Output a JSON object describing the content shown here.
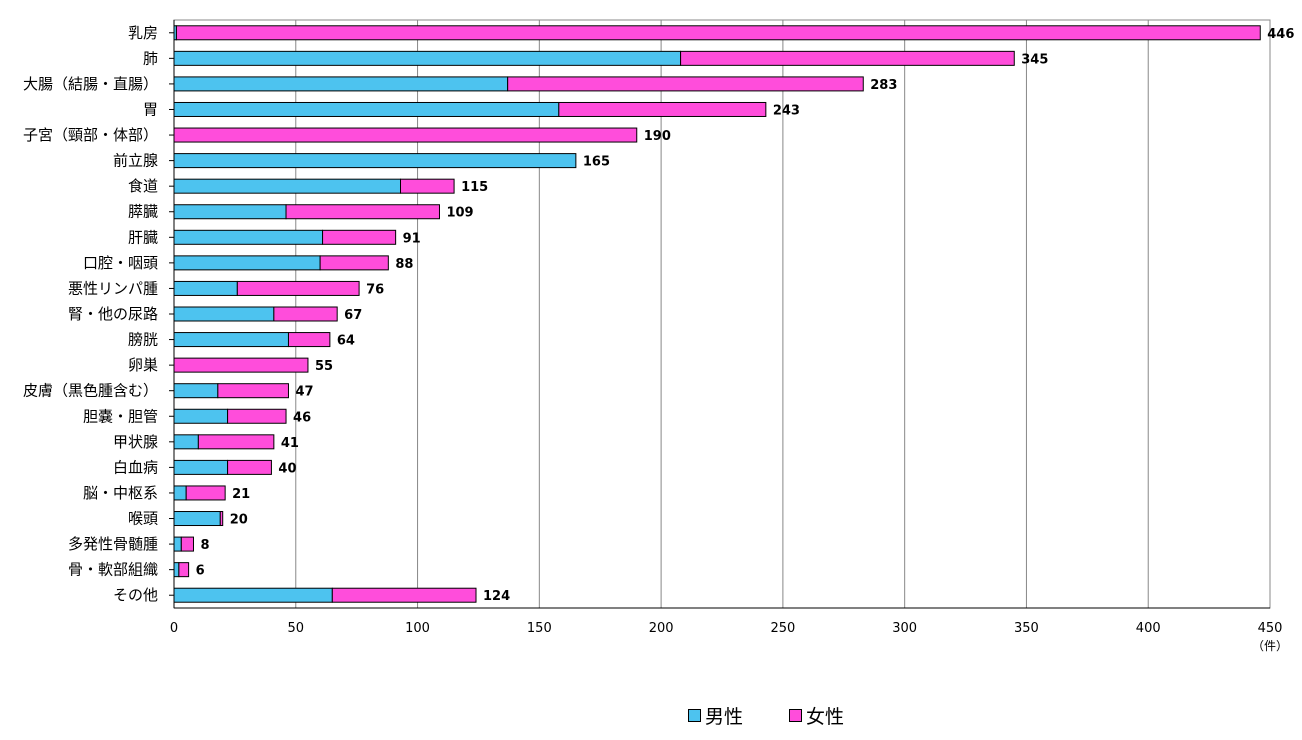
{
  "chart_data": {
    "type": "bar",
    "orientation": "horizontal",
    "stacked": true,
    "categories": [
      "乳房",
      "肺",
      "大腸（結腸・直腸）",
      "胃",
      "子宮（頸部・体部）",
      "前立腺",
      "食道",
      "膵臓",
      "肝臓",
      "口腔・咽頭",
      "悪性リンパ腫",
      "腎・他の尿路",
      "膀胱",
      "卵巣",
      "皮膚（黒色腫含む）",
      "胆嚢・胆管",
      "甲状腺",
      "白血病",
      "脳・中枢系",
      "喉頭",
      "多発性骨髄腫",
      "骨・軟部組織",
      "その他"
    ],
    "series": [
      {
        "name": "男性",
        "color": "#4dc3ef",
        "values": [
          1,
          208,
          137,
          158,
          0,
          165,
          93,
          46,
          61,
          60,
          26,
          41,
          47,
          0,
          18,
          22,
          10,
          22,
          5,
          19,
          3,
          2,
          65
        ]
      },
      {
        "name": "女性",
        "color": "#ff4ddb",
        "values": [
          445,
          137,
          146,
          85,
          190,
          0,
          22,
          63,
          30,
          28,
          50,
          26,
          17,
          55,
          29,
          24,
          31,
          18,
          16,
          1,
          5,
          4,
          59
        ]
      }
    ],
    "totals": [
      "446",
      "345",
      "283",
      "243",
      "190",
      "165",
      "115",
      "109",
      "91",
      "88",
      "76",
      "67",
      "64",
      "55",
      "47",
      "46",
      "41",
      "40",
      "21",
      "20",
      "8",
      "6",
      "124"
    ],
    "xlim": [
      0,
      450
    ],
    "xticks": [
      "0",
      "50",
      "100",
      "150",
      "200",
      "250",
      "300",
      "350",
      "400",
      "450"
    ],
    "x_unit": "（件）",
    "grid": true,
    "legend_position": "bottom"
  }
}
